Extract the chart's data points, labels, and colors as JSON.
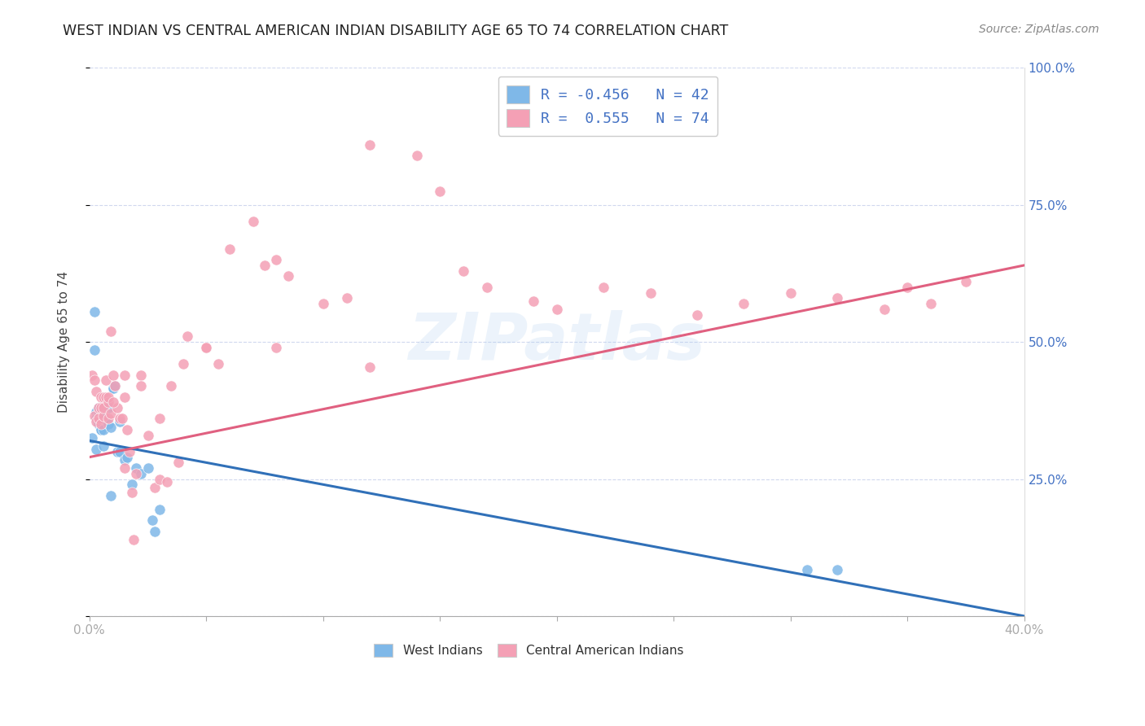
{
  "title": "WEST INDIAN VS CENTRAL AMERICAN INDIAN DISABILITY AGE 65 TO 74 CORRELATION CHART",
  "source": "Source: ZipAtlas.com",
  "ylabel": "Disability Age 65 to 74",
  "xlim": [
    0.0,
    0.4
  ],
  "ylim": [
    0.0,
    1.0
  ],
  "blue_color": "#7fb8e8",
  "pink_color": "#f4a0b5",
  "blue_line_color": "#3070b8",
  "pink_line_color": "#e06080",
  "watermark": "ZIPatlas",
  "background_color": "#ffffff",
  "grid_color": "#d0d8ee",
  "legend_line1": "R = -0.456   N = 42",
  "legend_line2": "R =  0.555   N = 74",
  "legend_text_color": "#4472c4",
  "right_axis_color": "#4472c4",
  "west_indian_x": [
    0.001,
    0.002,
    0.002,
    0.003,
    0.003,
    0.003,
    0.004,
    0.004,
    0.004,
    0.005,
    0.005,
    0.005,
    0.005,
    0.006,
    0.006,
    0.006,
    0.006,
    0.007,
    0.007,
    0.007,
    0.008,
    0.008,
    0.008,
    0.009,
    0.009,
    0.01,
    0.01,
    0.011,
    0.012,
    0.013,
    0.013,
    0.015,
    0.016,
    0.018,
    0.02,
    0.022,
    0.025,
    0.027,
    0.028,
    0.03,
    0.307,
    0.32
  ],
  "west_indian_y": [
    0.325,
    0.555,
    0.485,
    0.305,
    0.372,
    0.36,
    0.372,
    0.35,
    0.38,
    0.34,
    0.36,
    0.34,
    0.38,
    0.34,
    0.36,
    0.36,
    0.31,
    0.385,
    0.39,
    0.395,
    0.38,
    0.35,
    0.35,
    0.345,
    0.22,
    0.415,
    0.415,
    0.42,
    0.3,
    0.355,
    0.3,
    0.285,
    0.29,
    0.24,
    0.27,
    0.26,
    0.27,
    0.175,
    0.155,
    0.195,
    0.085,
    0.085
  ],
  "central_american_x": [
    0.001,
    0.002,
    0.002,
    0.003,
    0.003,
    0.004,
    0.004,
    0.005,
    0.005,
    0.005,
    0.006,
    0.006,
    0.006,
    0.007,
    0.007,
    0.008,
    0.008,
    0.009,
    0.009,
    0.01,
    0.011,
    0.012,
    0.013,
    0.014,
    0.015,
    0.015,
    0.016,
    0.017,
    0.018,
    0.019,
    0.02,
    0.022,
    0.025,
    0.028,
    0.03,
    0.033,
    0.035,
    0.038,
    0.04,
    0.042,
    0.05,
    0.055,
    0.06,
    0.07,
    0.075,
    0.08,
    0.085,
    0.1,
    0.11,
    0.12,
    0.14,
    0.15,
    0.16,
    0.17,
    0.19,
    0.2,
    0.22,
    0.24,
    0.26,
    0.28,
    0.3,
    0.32,
    0.34,
    0.35,
    0.36,
    0.375,
    0.008,
    0.01,
    0.015,
    0.022,
    0.03,
    0.05,
    0.08,
    0.12
  ],
  "central_american_y": [
    0.44,
    0.365,
    0.43,
    0.355,
    0.41,
    0.38,
    0.36,
    0.35,
    0.4,
    0.38,
    0.365,
    0.4,
    0.38,
    0.43,
    0.4,
    0.39,
    0.36,
    0.37,
    0.52,
    0.44,
    0.42,
    0.38,
    0.36,
    0.36,
    0.4,
    0.27,
    0.34,
    0.3,
    0.225,
    0.14,
    0.26,
    0.44,
    0.33,
    0.235,
    0.25,
    0.245,
    0.42,
    0.28,
    0.46,
    0.51,
    0.49,
    0.46,
    0.67,
    0.72,
    0.64,
    0.65,
    0.62,
    0.57,
    0.58,
    0.86,
    0.84,
    0.775,
    0.63,
    0.6,
    0.575,
    0.56,
    0.6,
    0.59,
    0.55,
    0.57,
    0.59,
    0.58,
    0.56,
    0.6,
    0.57,
    0.61,
    0.4,
    0.39,
    0.44,
    0.42,
    0.36,
    0.49,
    0.49,
    0.455
  ]
}
